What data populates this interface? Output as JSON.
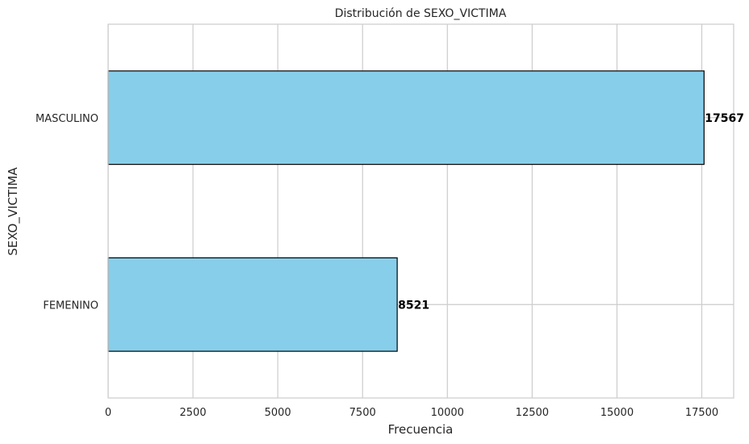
{
  "chart_data": {
    "type": "bar",
    "orientation": "horizontal",
    "title": "Distribución de SEXO_VICTIMA",
    "xlabel": "Frecuencia",
    "ylabel": "SEXO_VICTIMA",
    "categories": [
      "FEMENINO",
      "MASCULINO"
    ],
    "values": [
      8521,
      17567
    ],
    "data_labels": [
      "8521",
      "17567"
    ],
    "xlim": [
      0,
      18440
    ],
    "xticks": [
      0,
      2500,
      5000,
      7500,
      10000,
      12500,
      15000,
      17500
    ],
    "xtick_labels": [
      "0",
      "2500",
      "5000",
      "7500",
      "10000",
      "12500",
      "15000",
      "17500"
    ],
    "grid": true,
    "bar_color": "#87CEEB",
    "edge_color": "#000000",
    "grid_color": "#cccccc"
  }
}
